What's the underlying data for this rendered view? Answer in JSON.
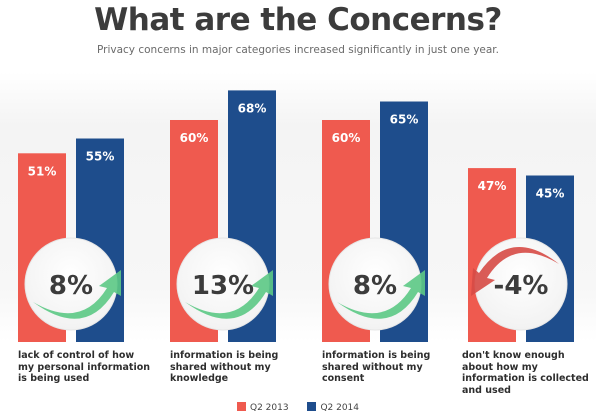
{
  "chart_data": {
    "type": "bar",
    "title": "What are the Concerns?",
    "subtitle": "Privacy concerns in major categories increased significantly in just one year.",
    "categories": [
      "lack of control of how my personal information is being used",
      "information is being shared without my knowledge",
      "information is being shared without my consent",
      "don't know enough about how my information is collected and used"
    ],
    "series": [
      {
        "name": "Q2 2013",
        "values": [
          51,
          60,
          60,
          47
        ],
        "labels": [
          "51%",
          "60%",
          "60%",
          "47%"
        ],
        "color": "#ef5a4f"
      },
      {
        "name": "Q2 2014",
        "values": [
          55,
          68,
          65,
          45
        ],
        "labels": [
          "55%",
          "68%",
          "65%",
          "45%"
        ],
        "color": "#1e4d8c"
      }
    ],
    "changes": [
      "8%",
      "13%",
      "8%",
      "-4%"
    ],
    "change_direction": [
      "up",
      "up",
      "up",
      "down"
    ],
    "ylim": [
      0,
      75
    ],
    "colors": {
      "up_arrow": "#5cc985",
      "down_arrow": "#d64a45"
    },
    "legend": {
      "position": "bottom-center"
    }
  }
}
